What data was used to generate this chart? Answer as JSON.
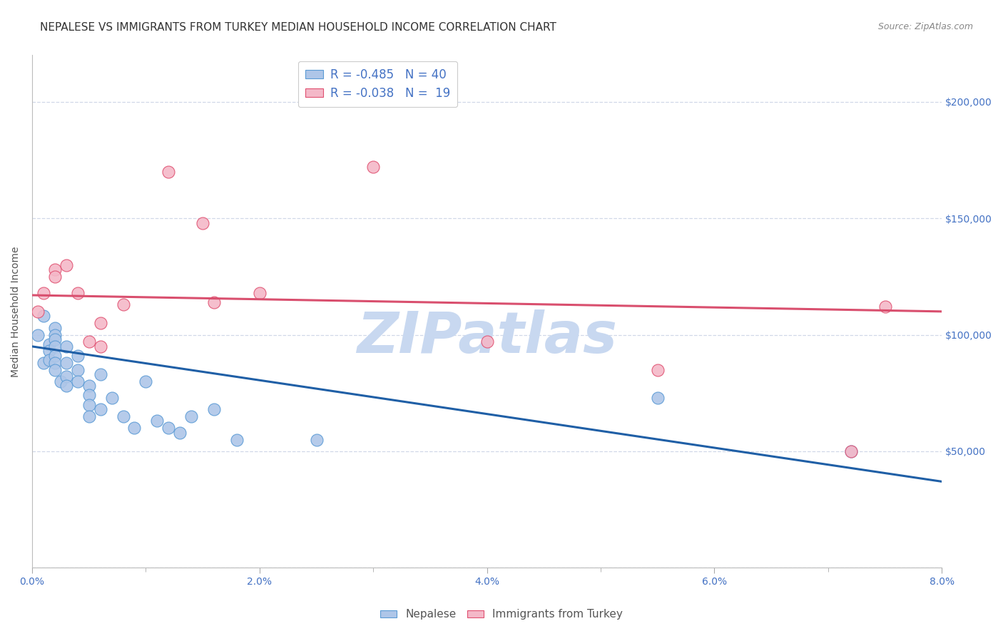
{
  "title": "NEPALESE VS IMMIGRANTS FROM TURKEY MEDIAN HOUSEHOLD INCOME CORRELATION CHART",
  "source": "Source: ZipAtlas.com",
  "ylabel": "Median Household Income",
  "xlim": [
    0.0,
    0.08
  ],
  "ylim": [
    0,
    220000
  ],
  "yticks": [
    0,
    50000,
    100000,
    150000,
    200000
  ],
  "nepalese_color": "#aec6e8",
  "nepalese_edge": "#5b9bd5",
  "turkey_color": "#f4b8c8",
  "turkey_edge": "#e05070",
  "blue_line_color": "#1f5fa6",
  "pink_line_color": "#d94f6e",
  "watermark": "ZIPatlas",
  "watermark_color": "#c8d8f0",
  "watermark_fontsize": 58,
  "background_color": "#ffffff",
  "grid_color": "#d0d8e8",
  "title_color": "#333333",
  "axis_color": "#4472c4",
  "label_color": "#555555",
  "title_fontsize": 11,
  "tick_fontsize": 10,
  "ylabel_fontsize": 10,
  "legend_fontsize": 12,
  "nepalese_x": [
    0.0005,
    0.001,
    0.001,
    0.0015,
    0.0015,
    0.0015,
    0.002,
    0.002,
    0.002,
    0.002,
    0.002,
    0.002,
    0.002,
    0.0025,
    0.003,
    0.003,
    0.003,
    0.003,
    0.004,
    0.004,
    0.004,
    0.005,
    0.005,
    0.005,
    0.005,
    0.006,
    0.006,
    0.007,
    0.008,
    0.009,
    0.01,
    0.011,
    0.012,
    0.013,
    0.014,
    0.016,
    0.018,
    0.025,
    0.055,
    0.072
  ],
  "nepalese_y": [
    100000,
    108000,
    88000,
    96000,
    93000,
    89000,
    103000,
    100000,
    98000,
    95000,
    91000,
    88000,
    85000,
    80000,
    95000,
    88000,
    82000,
    78000,
    91000,
    85000,
    80000,
    78000,
    74000,
    70000,
    65000,
    83000,
    68000,
    73000,
    65000,
    60000,
    80000,
    63000,
    60000,
    58000,
    65000,
    68000,
    55000,
    55000,
    73000,
    50000
  ],
  "turkey_x": [
    0.0005,
    0.001,
    0.002,
    0.002,
    0.003,
    0.004,
    0.005,
    0.006,
    0.006,
    0.008,
    0.012,
    0.015,
    0.016,
    0.02,
    0.03,
    0.04,
    0.055,
    0.072,
    0.075
  ],
  "turkey_y": [
    110000,
    118000,
    128000,
    125000,
    130000,
    118000,
    97000,
    95000,
    105000,
    113000,
    170000,
    148000,
    114000,
    118000,
    172000,
    97000,
    85000,
    50000,
    112000
  ],
  "blue_line_x0": 0.0,
  "blue_line_x1": 0.08,
  "blue_line_y0": 95000,
  "blue_line_y1": 37000,
  "pink_line_x0": 0.0,
  "pink_line_x1": 0.08,
  "pink_line_y0": 117000,
  "pink_line_y1": 110000
}
